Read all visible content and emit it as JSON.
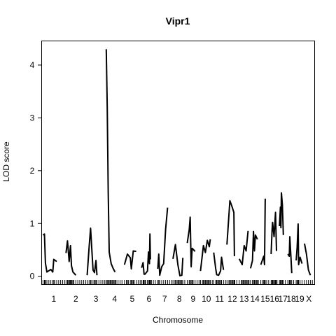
{
  "chart_data": {
    "type": "line",
    "title": "Vipr1",
    "xlabel": "Chromosome",
    "ylabel": "LOD score",
    "ylim": [
      -0.15,
      4.45
    ],
    "yticks": [
      0,
      1,
      2,
      3,
      4
    ],
    "grid": false,
    "legend": "none",
    "chromosomes": [
      {
        "label": "1",
        "length": 22,
        "points": [
          [
            0,
            0.78
          ],
          [
            1.5,
            0.8
          ],
          [
            2.5,
            0.25
          ],
          [
            4,
            0.08
          ],
          [
            8,
            0.13
          ],
          [
            10,
            0.08
          ],
          [
            11,
            0.32
          ],
          [
            14,
            0.28
          ]
        ]
      },
      {
        "label": "2",
        "length": 20,
        "points": [
          [
            0,
            0.44
          ],
          [
            1.5,
            0.67
          ],
          [
            3.2,
            0.28
          ],
          [
            4.5,
            0.58
          ],
          [
            5.5,
            0.2
          ],
          [
            7,
            0.08
          ],
          [
            10,
            0.02
          ]
        ]
      },
      {
        "label": "3",
        "length": 18,
        "points": [
          [
            0,
            0.02
          ],
          [
            2,
            0.55
          ],
          [
            3.5,
            0.91
          ],
          [
            6,
            0.12
          ],
          [
            7.5,
            0.07
          ],
          [
            9,
            0.3
          ],
          [
            10,
            0.02
          ]
        ]
      },
      {
        "label": "4",
        "length": 17,
        "points": [
          [
            0,
            4.3
          ],
          [
            1,
            3.2
          ],
          [
            2,
            1.6
          ],
          [
            3,
            0.46
          ],
          [
            5,
            0.24
          ],
          [
            7,
            0.15
          ],
          [
            9,
            0.08
          ]
        ]
      },
      {
        "label": "5",
        "length": 16,
        "points": [
          [
            0,
            0.22
          ],
          [
            3,
            0.42
          ],
          [
            6,
            0.35
          ],
          [
            7,
            0.14
          ],
          [
            9,
            0.48
          ],
          [
            12,
            0.47
          ]
        ]
      },
      {
        "label": "6",
        "length": 15,
        "points": [
          [
            0,
            0.16
          ],
          [
            1.5,
            0.26
          ],
          [
            2.5,
            0.04
          ],
          [
            3.5,
            0.04
          ],
          [
            6,
            0.1
          ],
          [
            7,
            0.46
          ],
          [
            8,
            0.24
          ],
          [
            8.5,
            0.8
          ],
          [
            9,
            0.32
          ]
        ]
      },
      {
        "label": "7",
        "length": 14,
        "points": [
          [
            0,
            0.14
          ],
          [
            1,
            0.42
          ],
          [
            2,
            0.02
          ],
          [
            4,
            0.18
          ],
          [
            6,
            0.24
          ],
          [
            8,
            0.89
          ],
          [
            10,
            1.3
          ]
        ]
      },
      {
        "label": "8",
        "length": 13,
        "points": [
          [
            0,
            0.33
          ],
          [
            2.5,
            0.6
          ],
          [
            5,
            0.22
          ],
          [
            7,
            0.01
          ],
          [
            9,
            0.02
          ],
          [
            10,
            0.35
          ]
        ]
      },
      {
        "label": "9",
        "length": 12,
        "points": [
          [
            0,
            0.63
          ],
          [
            2,
            0.88
          ],
          [
            3,
            1.12
          ],
          [
            4,
            0.18
          ],
          [
            5,
            0.53
          ],
          [
            8,
            0.47
          ]
        ]
      },
      {
        "label": "10",
        "length": 12,
        "points": [
          [
            0,
            0.1
          ],
          [
            3,
            0.58
          ],
          [
            5,
            0.45
          ],
          [
            7,
            0.68
          ],
          [
            9,
            0.56
          ],
          [
            10,
            0.7
          ]
        ]
      },
      {
        "label": "11",
        "length": 12,
        "points": [
          [
            0,
            0.45
          ],
          [
            2,
            0.15
          ],
          [
            3,
            0.03
          ],
          [
            5,
            0.02
          ],
          [
            7,
            0.1
          ],
          [
            8,
            0.36
          ],
          [
            10,
            0.12
          ]
        ]
      },
      {
        "label": "12",
        "length": 11,
        "points": [
          [
            0,
            0.6
          ],
          [
            3,
            1.43
          ],
          [
            5,
            1.33
          ],
          [
            7,
            1.21
          ],
          [
            7.6,
            0.38
          ]
        ]
      },
      {
        "label": "13",
        "length": 10,
        "points": [
          [
            0,
            0.33
          ],
          [
            3,
            0.22
          ],
          [
            5,
            0.58
          ],
          [
            7,
            0.48
          ],
          [
            9,
            0.86
          ]
        ]
      },
      {
        "label": "14",
        "length": 9,
        "points": [
          [
            0,
            0.15
          ],
          [
            2,
            0.3
          ],
          [
            3,
            0.85
          ],
          [
            4,
            0.48
          ],
          [
            5,
            0.78
          ],
          [
            7,
            0.7
          ]
        ]
      },
      {
        "label": "15",
        "length": 9,
        "points": [
          [
            0,
            0.22
          ],
          [
            3,
            0.38
          ],
          [
            3.8,
            0.22
          ],
          [
            4.5,
            1.47
          ]
        ]
      },
      {
        "label": "16",
        "length": 7,
        "points": [
          [
            0,
            0.42
          ],
          [
            1,
            0.88
          ],
          [
            1.5,
            1.02
          ],
          [
            3,
            0.75
          ],
          [
            4.5,
            1.21
          ],
          [
            5.5,
            0.48
          ]
        ]
      },
      {
        "label": "17",
        "length": 7,
        "points": [
          [
            0,
            0.95
          ],
          [
            1,
            1.31
          ],
          [
            1.5,
            0.92
          ],
          [
            2,
            1.58
          ],
          [
            3,
            1.35
          ],
          [
            4,
            0.78
          ]
        ]
      },
      {
        "label": "18",
        "length": 7,
        "points": [
          [
            0,
            0.42
          ],
          [
            1.5,
            0.38
          ],
          [
            2,
            0.75
          ],
          [
            3,
            0.42
          ],
          [
            4,
            0.06
          ]
        ]
      },
      {
        "label": "19",
        "length": 7,
        "points": [
          [
            0,
            0.3
          ],
          [
            1,
            0.55
          ],
          [
            2,
            0.99
          ],
          [
            2.5,
            0.22
          ],
          [
            4,
            0.36
          ],
          [
            6,
            0.24
          ]
        ]
      },
      {
        "label": "X",
        "length": 9,
        "points": [
          [
            0,
            0.62
          ],
          [
            2,
            0.42
          ],
          [
            4,
            0.12
          ],
          [
            6,
            0.02
          ]
        ]
      }
    ]
  }
}
